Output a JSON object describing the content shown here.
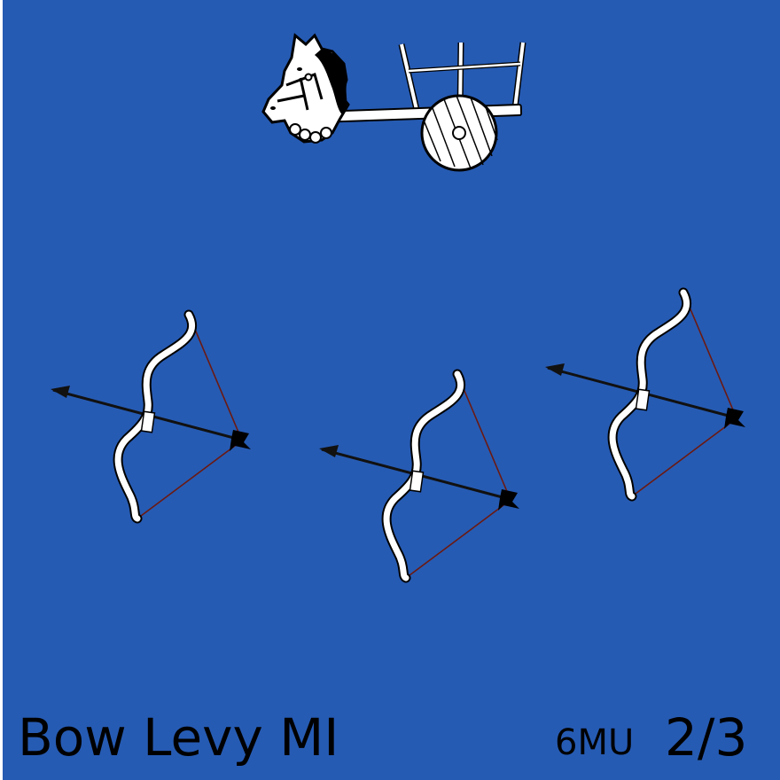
{
  "counter": {
    "unit_name": "Bow Levy MI",
    "movement": "6MU",
    "strength": "2/3",
    "background_color": "#265bb3",
    "text_color": "#000000"
  },
  "icons": {
    "commander": "horse-chariot-icon",
    "troops": [
      "bow-and-arrow-icon",
      "bow-and-arrow-icon",
      "bow-and-arrow-icon"
    ]
  }
}
